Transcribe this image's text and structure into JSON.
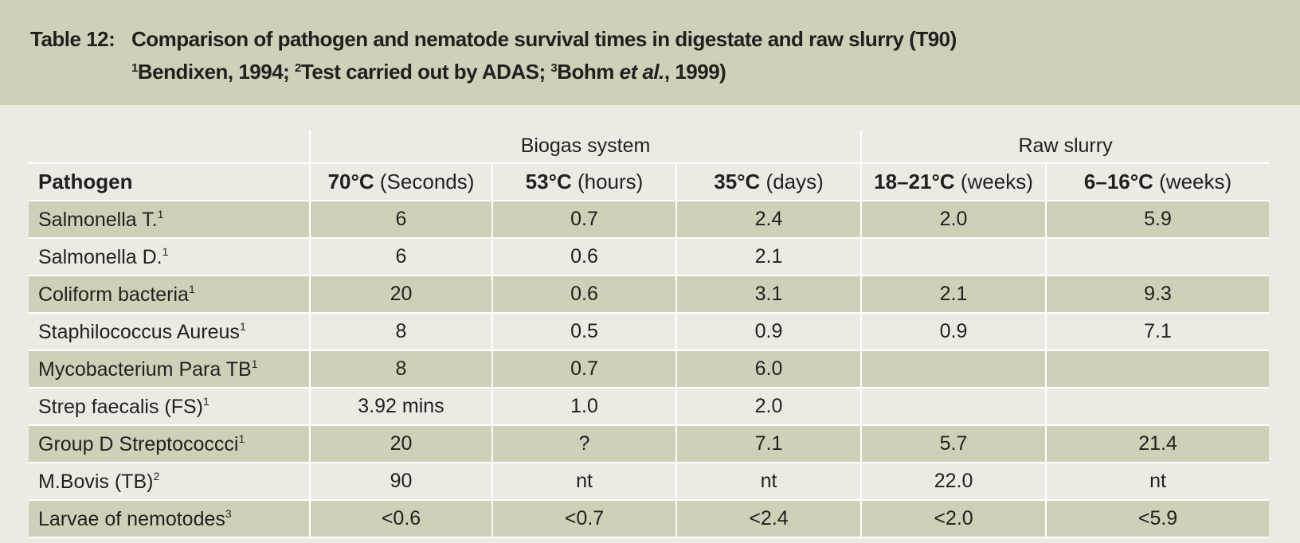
{
  "caption": {
    "label": "Table 12:",
    "title": "Comparison of pathogen and nematode survival times in digestate and raw slurry (T90)",
    "sources": [
      {
        "num": "1",
        "text": "Bendixen, 1994; "
      },
      {
        "num": "2",
        "text": "Test carried out by ADAS; "
      },
      {
        "num": "3",
        "text": "Bohm ",
        "italic": "et al.",
        "tail": ", 1999)"
      }
    ]
  },
  "table": {
    "groups": [
      "Biogas system",
      "Raw slurry"
    ],
    "columns": [
      {
        "bold": "Pathogen",
        "rest": ""
      },
      {
        "bold": "70°C",
        "rest": " (Seconds)"
      },
      {
        "bold": "53°C",
        "rest": " (hours)"
      },
      {
        "bold": "35°C",
        "rest": " (days)"
      },
      {
        "bold": "18–21°C",
        "rest": " (weeks)"
      },
      {
        "bold": "6–16°C",
        "rest": " (weeks)"
      }
    ],
    "rows": [
      {
        "name": "Salmonella T.",
        "sup": "1",
        "values": [
          "6",
          "0.7",
          "2.4",
          "2.0",
          "5.9"
        ]
      },
      {
        "name": "Salmonella D.",
        "sup": "1",
        "values": [
          "6",
          "0.6",
          "2.1",
          "",
          ""
        ]
      },
      {
        "name": "Coliform bacteria",
        "sup": "1",
        "values": [
          "20",
          "0.6",
          "3.1",
          "2.1",
          "9.3"
        ]
      },
      {
        "name": "Staphilococcus Aureus",
        "sup": "1",
        "values": [
          "8",
          "0.5",
          "0.9",
          "0.9",
          "7.1"
        ]
      },
      {
        "name": "Mycobacterium Para TB",
        "sup": "1",
        "values": [
          "8",
          "0.7",
          "6.0",
          "",
          ""
        ]
      },
      {
        "name": "Strep faecalis (FS)",
        "sup": "1",
        "values": [
          "3.92 mins",
          "1.0",
          "2.0",
          "",
          ""
        ]
      },
      {
        "name": "Group D Streptococcci",
        "sup": "1",
        "values": [
          "20",
          "?",
          "7.1",
          "5.7",
          "21.4"
        ]
      },
      {
        "name": "M.Bovis (TB)",
        "sup": "2",
        "values": [
          "90",
          "nt",
          "nt",
          "22.0",
          "nt"
        ]
      },
      {
        "name": "Larvae of nemotodes",
        "sup": "3",
        "values": [
          "<0.6",
          "<0.7",
          "<2.4",
          "<2.0",
          "<5.9"
        ]
      }
    ]
  },
  "colors": {
    "banner": "#d2cfb8",
    "page": "#eceae3",
    "shade": "#d2cfb8"
  }
}
